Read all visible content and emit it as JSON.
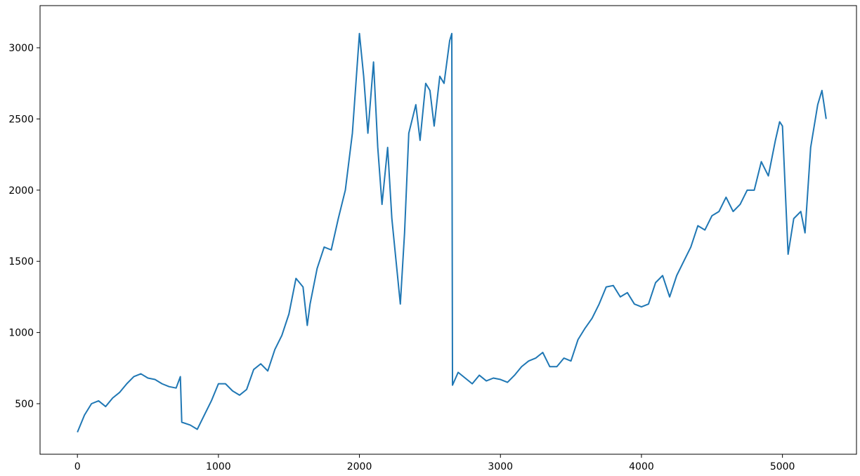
{
  "chart_data": {
    "type": "line",
    "x": [
      0,
      50,
      100,
      150,
      200,
      250,
      300,
      350,
      400,
      450,
      500,
      550,
      600,
      650,
      700,
      730,
      740,
      800,
      850,
      900,
      950,
      1000,
      1050,
      1100,
      1150,
      1200,
      1250,
      1300,
      1350,
      1400,
      1450,
      1500,
      1550,
      1600,
      1630,
      1650,
      1700,
      1750,
      1800,
      1850,
      1900,
      1950,
      2000,
      2030,
      2060,
      2100,
      2130,
      2160,
      2200,
      2230,
      2260,
      2290,
      2320,
      2350,
      2400,
      2430,
      2470,
      2500,
      2530,
      2570,
      2600,
      2640,
      2655,
      2660,
      2700,
      2750,
      2800,
      2850,
      2900,
      2950,
      3000,
      3050,
      3100,
      3150,
      3200,
      3250,
      3300,
      3350,
      3400,
      3450,
      3500,
      3550,
      3600,
      3650,
      3700,
      3750,
      3800,
      3850,
      3900,
      3950,
      4000,
      4050,
      4100,
      4150,
      4200,
      4250,
      4300,
      4350,
      4400,
      4450,
      4500,
      4550,
      4600,
      4650,
      4700,
      4750,
      4800,
      4850,
      4900,
      4950,
      4980,
      5000,
      5020,
      5040,
      5080,
      5130,
      5160,
      5200,
      5250,
      5280,
      5310
    ],
    "series": [
      {
        "color": "#1f77b4",
        "values": [
          300,
          420,
          500,
          520,
          480,
          540,
          580,
          640,
          690,
          710,
          680,
          670,
          640,
          620,
          610,
          690,
          370,
          350,
          320,
          420,
          520,
          640,
          640,
          590,
          560,
          600,
          740,
          780,
          730,
          880,
          980,
          1130,
          1380,
          1320,
          1050,
          1200,
          1450,
          1600,
          1580,
          1800,
          2000,
          2400,
          3100,
          2800,
          2400,
          2900,
          2300,
          1900,
          2300,
          1800,
          1500,
          1200,
          1700,
          2400,
          2600,
          2350,
          2750,
          2700,
          2450,
          2800,
          2750,
          3050,
          3100,
          630,
          720,
          680,
          640,
          700,
          660,
          680,
          670,
          650,
          700,
          760,
          800,
          820,
          860,
          760,
          760,
          820,
          800,
          950,
          1030,
          1100,
          1200,
          1320,
          1330,
          1250,
          1280,
          1200,
          1180,
          1200,
          1350,
          1400,
          1250,
          1400,
          1500,
          1600,
          1750,
          1720,
          1820,
          1850,
          1950,
          1850,
          1900,
          2000,
          2000,
          2200,
          2100,
          2350,
          2480,
          2450,
          2000,
          1550,
          1800,
          1850,
          1700,
          2300,
          2600,
          2700,
          2500
        ]
      }
    ],
    "xlim": [
      -265,
      5525
    ],
    "ylim": [
      145,
      3296
    ],
    "xticks": [
      0,
      1000,
      2000,
      3000,
      4000,
      5000
    ],
    "yticks": [
      500,
      1000,
      1500,
      2000,
      2500,
      3000
    ],
    "grid": false
  }
}
